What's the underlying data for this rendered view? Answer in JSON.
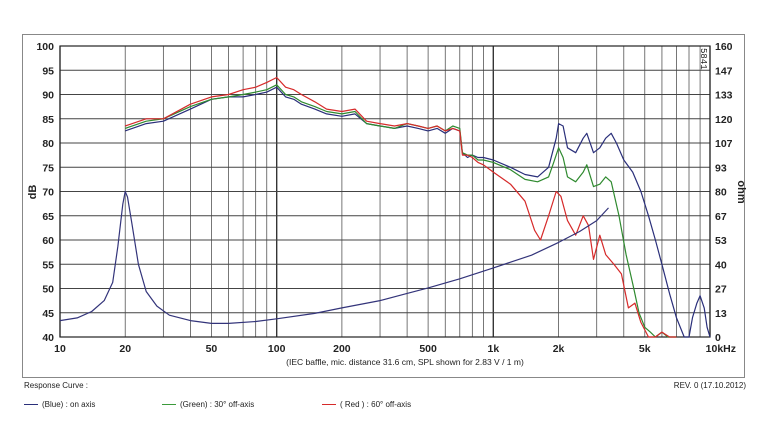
{
  "chart_data": {
    "type": "line",
    "title": "",
    "footnote": "(IEC baffle, mic. distance 31.6 cm, SPL shown for 2.83 V / 1 m)",
    "xlabel": "",
    "ylabel_left": "dB",
    "ylabel_right": "ohm",
    "x_scale": "log",
    "xlim": [
      10,
      10000
    ],
    "ylim_left": [
      40,
      100
    ],
    "ylim_right": [
      0,
      160
    ],
    "x_ticks": [
      {
        "value": 10,
        "label": "10"
      },
      {
        "value": 20,
        "label": "20"
      },
      {
        "value": 50,
        "label": "50"
      },
      {
        "value": 100,
        "label": "100"
      },
      {
        "value": 200,
        "label": "200"
      },
      {
        "value": 500,
        "label": "500"
      },
      {
        "value": 1000,
        "label": "1k"
      },
      {
        "value": 2000,
        "label": "2k"
      },
      {
        "value": 5000,
        "label": "5k"
      },
      {
        "value": 10000,
        "label": "10kHz"
      }
    ],
    "y_ticks_left": [
      "40",
      "45",
      "50",
      "55",
      "60",
      "65",
      "70",
      "75",
      "80",
      "85",
      "90",
      "95",
      "100"
    ],
    "y_ticks_right": [
      "0",
      "13",
      "27",
      "40",
      "53",
      "67",
      "80",
      "93",
      "107",
      "120",
      "133",
      "147",
      "160"
    ],
    "grid": true,
    "corner_tag": "5841",
    "series": [
      {
        "name": "(Blue) : on axis",
        "color": "#2a2f7a",
        "axis": "left",
        "points": [
          [
            20,
            82.5
          ],
          [
            25,
            84
          ],
          [
            30,
            84.5
          ],
          [
            40,
            87
          ],
          [
            50,
            89
          ],
          [
            60,
            89.5
          ],
          [
            70,
            89.5
          ],
          [
            80,
            90
          ],
          [
            90,
            90.5
          ],
          [
            100,
            91.5
          ],
          [
            110,
            89.5
          ],
          [
            120,
            89
          ],
          [
            130,
            88
          ],
          [
            150,
            87
          ],
          [
            170,
            86
          ],
          [
            200,
            85.5
          ],
          [
            230,
            86
          ],
          [
            260,
            84
          ],
          [
            300,
            83.5
          ],
          [
            350,
            83
          ],
          [
            400,
            83.5
          ],
          [
            450,
            83
          ],
          [
            500,
            82.5
          ],
          [
            550,
            83
          ],
          [
            600,
            82
          ],
          [
            650,
            83
          ],
          [
            700,
            82.5
          ],
          [
            720,
            78
          ],
          [
            760,
            77
          ],
          [
            800,
            77.5
          ],
          [
            850,
            77
          ],
          [
            900,
            77
          ],
          [
            1000,
            76.5
          ],
          [
            1200,
            75
          ],
          [
            1400,
            73.5
          ],
          [
            1600,
            73
          ],
          [
            1800,
            75
          ],
          [
            1950,
            81
          ],
          [
            2000,
            84
          ],
          [
            2100,
            83.5
          ],
          [
            2200,
            79
          ],
          [
            2400,
            78
          ],
          [
            2600,
            81
          ],
          [
            2700,
            82
          ],
          [
            2900,
            78
          ],
          [
            3100,
            79
          ],
          [
            3300,
            81
          ],
          [
            3500,
            82
          ],
          [
            3700,
            80
          ],
          [
            4000,
            76.5
          ],
          [
            4400,
            74
          ],
          [
            4800,
            70
          ],
          [
            5200,
            65
          ],
          [
            5600,
            60
          ],
          [
            6000,
            55
          ],
          [
            6500,
            49
          ],
          [
            7000,
            44
          ],
          [
            7600,
            40
          ],
          [
            8000,
            40
          ],
          [
            8300,
            44
          ],
          [
            8700,
            47
          ],
          [
            9000,
            48.5
          ],
          [
            9400,
            46
          ],
          [
            9700,
            42
          ],
          [
            10000,
            40
          ]
        ]
      },
      {
        "name": "(Green) : 30° off-axis",
        "color": "#2f8a2f",
        "axis": "left",
        "points": [
          [
            20,
            83
          ],
          [
            25,
            84.5
          ],
          [
            30,
            85
          ],
          [
            40,
            87.5
          ],
          [
            50,
            89
          ],
          [
            60,
            89.5
          ],
          [
            70,
            90
          ],
          [
            80,
            90.5
          ],
          [
            90,
            91
          ],
          [
            100,
            92
          ],
          [
            110,
            90
          ],
          [
            120,
            89.5
          ],
          [
            130,
            88.5
          ],
          [
            150,
            87.5
          ],
          [
            170,
            86.5
          ],
          [
            200,
            86
          ],
          [
            230,
            86.5
          ],
          [
            260,
            84
          ],
          [
            300,
            83.5
          ],
          [
            350,
            83
          ],
          [
            400,
            84
          ],
          [
            450,
            83.5
          ],
          [
            500,
            83
          ],
          [
            550,
            83.5
          ],
          [
            600,
            82.5
          ],
          [
            650,
            83.5
          ],
          [
            700,
            83
          ],
          [
            720,
            78
          ],
          [
            760,
            77.5
          ],
          [
            800,
            77.5
          ],
          [
            850,
            76.5
          ],
          [
            900,
            76.5
          ],
          [
            1000,
            76
          ],
          [
            1200,
            74.5
          ],
          [
            1400,
            72.5
          ],
          [
            1600,
            72
          ],
          [
            1800,
            73
          ],
          [
            1900,
            76
          ],
          [
            2000,
            79
          ],
          [
            2100,
            77
          ],
          [
            2200,
            73
          ],
          [
            2400,
            72
          ],
          [
            2600,
            74
          ],
          [
            2700,
            75.5
          ],
          [
            2900,
            71
          ],
          [
            3100,
            71.5
          ],
          [
            3300,
            73
          ],
          [
            3500,
            72
          ],
          [
            3800,
            65
          ],
          [
            4100,
            57
          ],
          [
            4400,
            51
          ],
          [
            4700,
            45
          ],
          [
            5000,
            42
          ],
          [
            5300,
            41
          ],
          [
            5600,
            40
          ],
          [
            6000,
            41
          ],
          [
            6400,
            40
          ],
          [
            7000,
            40
          ]
        ]
      },
      {
        "name": "( Red ) : 60° off-axis",
        "color": "#d62a2a",
        "axis": "left",
        "points": [
          [
            20,
            83.5
          ],
          [
            25,
            85
          ],
          [
            30,
            85
          ],
          [
            40,
            88
          ],
          [
            50,
            89.5
          ],
          [
            60,
            90
          ],
          [
            70,
            91
          ],
          [
            80,
            91.5
          ],
          [
            90,
            92.5
          ],
          [
            100,
            93.5
          ],
          [
            110,
            91.5
          ],
          [
            120,
            91
          ],
          [
            130,
            90
          ],
          [
            150,
            88.5
          ],
          [
            170,
            87
          ],
          [
            200,
            86.5
          ],
          [
            230,
            87
          ],
          [
            260,
            84.5
          ],
          [
            300,
            84
          ],
          [
            350,
            83.5
          ],
          [
            400,
            84
          ],
          [
            450,
            83.5
          ],
          [
            500,
            83
          ],
          [
            550,
            83.5
          ],
          [
            600,
            82.5
          ],
          [
            650,
            83
          ],
          [
            700,
            82.5
          ],
          [
            720,
            77.5
          ],
          [
            760,
            77.5
          ],
          [
            800,
            77
          ],
          [
            850,
            76
          ],
          [
            900,
            75.5
          ],
          [
            1000,
            74
          ],
          [
            1200,
            71.5
          ],
          [
            1400,
            68
          ],
          [
            1550,
            62
          ],
          [
            1650,
            60
          ],
          [
            1800,
            65
          ],
          [
            1950,
            70
          ],
          [
            2050,
            69
          ],
          [
            2200,
            64
          ],
          [
            2400,
            61
          ],
          [
            2600,
            65
          ],
          [
            2750,
            63
          ],
          [
            2900,
            56
          ],
          [
            3100,
            61
          ],
          [
            3300,
            57
          ],
          [
            3600,
            55
          ],
          [
            3900,
            53
          ],
          [
            4200,
            46
          ],
          [
            4500,
            47
          ],
          [
            4800,
            43
          ],
          [
            5200,
            40
          ],
          [
            5600,
            40
          ],
          [
            6000,
            41
          ],
          [
            6500,
            40
          ],
          [
            7000,
            40
          ]
        ]
      },
      {
        "name": "impedance",
        "color": "#33347a",
        "axis": "right",
        "points": [
          [
            10,
            9
          ],
          [
            12,
            10.5
          ],
          [
            14,
            14
          ],
          [
            16,
            20
          ],
          [
            17.5,
            30
          ],
          [
            18.5,
            50
          ],
          [
            19.5,
            73
          ],
          [
            20,
            80
          ],
          [
            20.5,
            77
          ],
          [
            21.5,
            62
          ],
          [
            23,
            40
          ],
          [
            25,
            25
          ],
          [
            28,
            17
          ],
          [
            32,
            12
          ],
          [
            40,
            9
          ],
          [
            50,
            7.5
          ],
          [
            60,
            7.5
          ],
          [
            80,
            8.5
          ],
          [
            100,
            10
          ],
          [
            150,
            13
          ],
          [
            200,
            16
          ],
          [
            300,
            20
          ],
          [
            400,
            24
          ],
          [
            500,
            27
          ],
          [
            700,
            32
          ],
          [
            1000,
            38
          ],
          [
            1500,
            45
          ],
          [
            2000,
            52
          ],
          [
            2500,
            58
          ],
          [
            3000,
            64
          ],
          [
            3400,
            71
          ]
        ]
      }
    ]
  },
  "legend": {
    "title": "Response Curve :",
    "revision": "REV. 0 (17.10.2012)",
    "items": [
      {
        "label": "(Blue)  : on axis",
        "color": "#2a2f7a"
      },
      {
        "label": "(Green) : 30° off-axis",
        "color": "#3b9a3b"
      },
      {
        "label": "( Red ) : 60° off-axis",
        "color": "#d62a2a"
      }
    ]
  }
}
